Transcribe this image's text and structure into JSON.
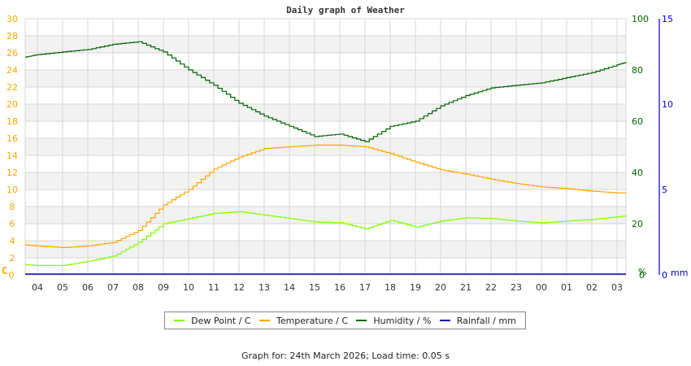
{
  "header": {
    "title": "Daily graph of Weather"
  },
  "legend": {
    "items": [
      {
        "label": "Dew Point / C",
        "color": "#7fff00"
      },
      {
        "label": "Temperature / C",
        "color": "#ffa500"
      },
      {
        "label": "Humidity / %",
        "color": "#006400"
      },
      {
        "label": "Rainfall / mm",
        "color": "#0000cc"
      }
    ]
  },
  "footer": {
    "text": "Graph for: 24th March 2026; Load time: 0.05 s"
  },
  "axes": {
    "left_unit": "C",
    "right_unit": "%",
    "far_right_unit": "mm",
    "left_ticks": [
      "0",
      "2",
      "4",
      "6",
      "8",
      "10",
      "12",
      "14",
      "16",
      "18",
      "20",
      "22",
      "24",
      "26",
      "28",
      "30"
    ],
    "right_ticks": [
      "0",
      "20",
      "40",
      "60",
      "80",
      "100"
    ],
    "far_right_ticks": [
      "0",
      "5",
      "10",
      "15"
    ],
    "x_ticks": [
      "04",
      "05",
      "06",
      "07",
      "08",
      "09",
      "10",
      "11",
      "12",
      "13",
      "14",
      "15",
      "16",
      "17",
      "18",
      "19",
      "20",
      "21",
      "22",
      "23",
      "00",
      "01",
      "02",
      "03"
    ]
  },
  "chart_data": {
    "type": "line",
    "title": "Daily graph of Weather",
    "xlabel": "",
    "ylabel": "C",
    "y2label": "%",
    "y3label": "mm",
    "ylim": [
      0,
      30
    ],
    "y2lim": [
      0,
      100
    ],
    "y3lim": [
      0,
      15
    ],
    "grid": true,
    "legend_position": "bottom",
    "x": [
      "03:30",
      "04",
      "05",
      "06",
      "07",
      "08",
      "09",
      "10",
      "11",
      "12",
      "13",
      "14",
      "15",
      "16",
      "17",
      "18",
      "19",
      "20",
      "21",
      "22",
      "23",
      "00",
      "01",
      "02",
      "03",
      "03:30"
    ],
    "series": [
      {
        "name": "Dew Point / C",
        "axis": "left",
        "values": [
          1.2,
          1.1,
          1.1,
          1.6,
          2.2,
          3.8,
          6.0,
          6.6,
          7.2,
          7.4,
          7.0,
          6.6,
          6.2,
          6.1,
          5.4,
          6.4,
          5.6,
          6.3,
          6.7,
          6.6,
          6.3,
          6.1,
          6.3,
          6.5,
          6.8,
          6.9
        ]
      },
      {
        "name": "Temperature / C",
        "axis": "left",
        "values": [
          3.5,
          3.4,
          3.2,
          3.4,
          3.8,
          5.2,
          8.2,
          10.0,
          12.4,
          13.8,
          14.8,
          15.0,
          15.2,
          15.2,
          15.0,
          14.2,
          13.2,
          12.3,
          11.8,
          11.2,
          10.7,
          10.3,
          10.1,
          9.8,
          9.6,
          9.6
        ]
      },
      {
        "name": "Humidity / %",
        "axis": "right",
        "values": [
          85,
          86,
          87,
          88,
          90,
          91,
          87,
          80,
          74,
          67,
          62,
          58,
          54,
          55,
          52,
          58,
          60,
          66,
          70,
          73,
          74,
          75,
          77,
          79,
          82,
          83
        ]
      },
      {
        "name": "Rainfall / mm",
        "axis": "far_right",
        "values": [
          0,
          0,
          0,
          0,
          0,
          0,
          0,
          0,
          0,
          0,
          0,
          0,
          0,
          0,
          0,
          0,
          0,
          0,
          0,
          0,
          0,
          0,
          0,
          0,
          0,
          0
        ]
      }
    ]
  }
}
